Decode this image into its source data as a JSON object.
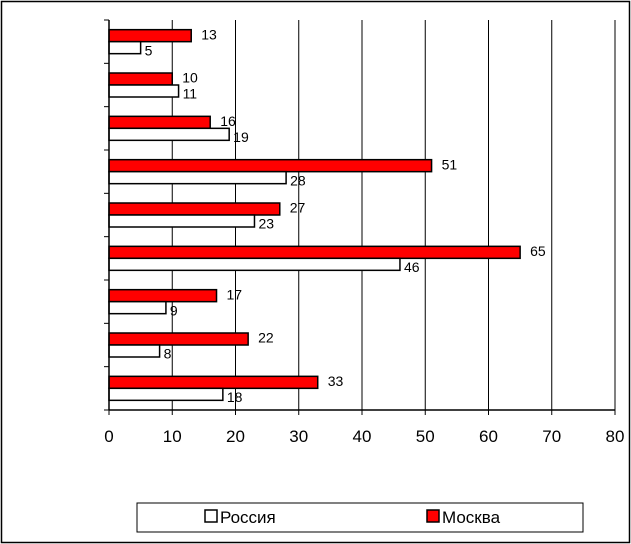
{
  "chart_data": {
    "type": "bar",
    "orientation": "horizontal",
    "categories": [
      "",
      "",
      "",
      "",
      "",
      "",
      "",
      "",
      ""
    ],
    "series": [
      {
        "name": "Москва",
        "color": "#ff0000",
        "values": [
          13,
          10,
          16,
          51,
          27,
          65,
          17,
          22,
          33
        ]
      },
      {
        "name": "Россия",
        "color": "#ffffff",
        "values": [
          5,
          11,
          19,
          28,
          23,
          46,
          9,
          8,
          18
        ]
      }
    ],
    "xlim": [
      0,
      80
    ],
    "x_ticks": [
      0,
      10,
      20,
      30,
      40,
      50,
      60,
      70,
      80
    ],
    "grid": true,
    "legend": {
      "placement": "bottom",
      "order": [
        "Россия",
        "Москва"
      ]
    },
    "title": "",
    "xlabel": "",
    "ylabel": ""
  }
}
